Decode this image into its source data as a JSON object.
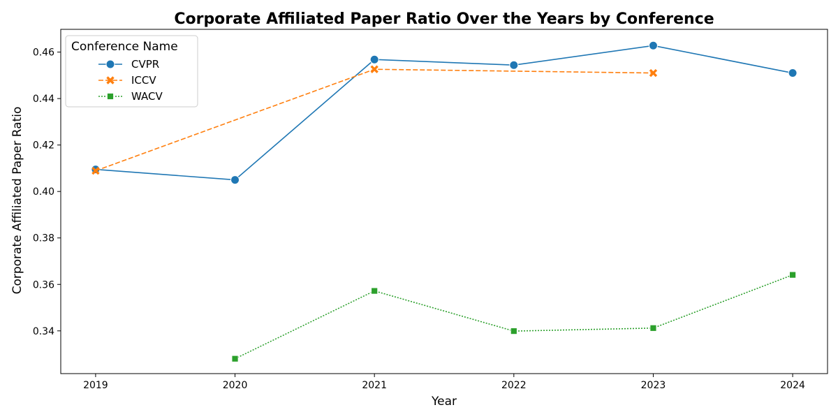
{
  "chart_data": {
    "type": "line",
    "title": "Corporate Affiliated Paper Ratio Over the Years by Conference",
    "xlabel": "Year",
    "ylabel": "Corporate Affiliated Paper Ratio",
    "x": [
      2019,
      2020,
      2021,
      2022,
      2023,
      2024
    ],
    "xlim": [
      2018.75,
      2024.25
    ],
    "ylim": [
      0.3216,
      0.4698
    ],
    "yticks": [
      0.34,
      0.36,
      0.38,
      0.4,
      0.42,
      0.44,
      0.46
    ],
    "ytick_labels": [
      "0.34",
      "0.36",
      "0.38",
      "0.40",
      "0.42",
      "0.44",
      "0.46"
    ],
    "grid": false,
    "legend": {
      "title": "Conference Name",
      "position": "top-left"
    },
    "series": [
      {
        "name": "CVPR",
        "color": "#1f77b4",
        "marker": "circle",
        "linestyle": "solid",
        "points": [
          [
            2019,
            0.4095
          ],
          [
            2020,
            0.405
          ],
          [
            2021,
            0.4568
          ],
          [
            2022,
            0.4544
          ],
          [
            2023,
            0.4628
          ],
          [
            2024,
            0.451
          ]
        ]
      },
      {
        "name": "ICCV",
        "color": "#ff7f0e",
        "marker": "x",
        "linestyle": "dashed",
        "points": [
          [
            2019,
            0.4089
          ],
          [
            2021,
            0.4526
          ],
          [
            2023,
            0.451
          ]
        ]
      },
      {
        "name": "WACV",
        "color": "#2ca02c",
        "marker": "square",
        "linestyle": "dotted",
        "points": [
          [
            2020,
            0.328
          ],
          [
            2021,
            0.3572
          ],
          [
            2022,
            0.3399
          ],
          [
            2023,
            0.3412
          ],
          [
            2024,
            0.3641
          ]
        ]
      }
    ]
  }
}
